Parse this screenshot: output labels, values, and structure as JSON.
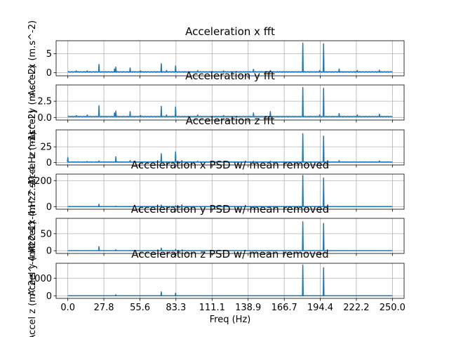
{
  "chart_data": [
    {
      "type": "line",
      "title": "Acceleration x fft",
      "ylabel": "Accel x (m.s^-2)",
      "xlabel": "",
      "xlim": [
        -9,
        259
      ],
      "ylim": [
        -0.8,
        8.4
      ],
      "yticks": [
        0,
        5
      ],
      "grid": true,
      "baseline": 0.25,
      "peaks": [
        [
          6.5,
          0.5
        ],
        [
          15,
          0.5
        ],
        [
          24,
          2.2
        ],
        [
          36,
          1.0
        ],
        [
          37,
          1.5
        ],
        [
          48,
          1.3
        ],
        [
          56,
          0.5
        ],
        [
          72,
          2.4
        ],
        [
          76,
          0.6
        ],
        [
          83,
          1.8
        ],
        [
          100,
          0.6
        ],
        [
          120,
          0.5
        ],
        [
          143,
          0.9
        ],
        [
          156,
          0.6
        ],
        [
          181,
          7.8
        ],
        [
          194,
          0.6
        ],
        [
          197,
          7.6
        ],
        [
          209,
          1.0
        ],
        [
          223,
          0.6
        ],
        [
          240,
          0.7
        ]
      ]
    },
    {
      "type": "line",
      "title": "Acceleration y fft",
      "ylabel": "Accel y (m.s^-2)",
      "xlabel": "",
      "xlim": [
        -9,
        259
      ],
      "ylim": [
        -0.4,
        5.0
      ],
      "yticks": [
        0.0,
        2.5
      ],
      "grid": true,
      "baseline": 0.15,
      "peaks": [
        [
          6.5,
          0.3
        ],
        [
          15,
          0.4
        ],
        [
          24,
          1.8
        ],
        [
          36,
          0.7
        ],
        [
          37,
          1.0
        ],
        [
          48,
          0.9
        ],
        [
          56,
          0.3
        ],
        [
          72,
          1.7
        ],
        [
          76,
          0.4
        ],
        [
          83,
          1.6
        ],
        [
          100,
          0.4
        ],
        [
          120,
          0.3
        ],
        [
          143,
          0.7
        ],
        [
          156,
          0.9
        ],
        [
          181,
          4.6
        ],
        [
          194,
          0.4
        ],
        [
          197,
          4.5
        ],
        [
          209,
          0.6
        ],
        [
          223,
          0.4
        ],
        [
          240,
          0.5
        ]
      ]
    },
    {
      "type": "line",
      "title": "Acceleration z fft",
      "ylabel": "Accel z (m.s^-2)",
      "xlabel": "",
      "xlim": [
        -9,
        259
      ],
      "ylim": [
        -4,
        52
      ],
      "yticks": [
        0,
        25
      ],
      "grid": true,
      "baseline": 0.8,
      "peaks": [
        [
          0,
          8
        ],
        [
          15,
          1.5
        ],
        [
          24,
          2.5
        ],
        [
          37,
          9
        ],
        [
          48,
          3
        ],
        [
          72,
          14
        ],
        [
          83,
          17
        ],
        [
          100,
          2
        ],
        [
          143,
          2
        ],
        [
          156,
          2
        ],
        [
          181,
          46
        ],
        [
          197,
          42
        ],
        [
          209,
          3
        ],
        [
          240,
          2.5
        ]
      ]
    },
    {
      "type": "line",
      "title": "Acceleration x PSD w/ mean removed",
      "ylabel": "Accel x (m^2.s^-4.Hz^-1)",
      "xlabel": "",
      "xlim": [
        -9,
        259
      ],
      "ylim": [
        -20,
        250
      ],
      "yticks": [
        0,
        200
      ],
      "grid": true,
      "baseline": 0.5,
      "peaks": [
        [
          24,
          18
        ],
        [
          37,
          4
        ],
        [
          72,
          12
        ],
        [
          83,
          6
        ],
        [
          181,
          240
        ],
        [
          197,
          220
        ]
      ]
    },
    {
      "type": "line",
      "title": "Acceleration y PSD w/ mean removed",
      "ylabel": "Accel y (m^2.s^-4.Hz^-1)",
      "xlabel": "",
      "xlim": [
        -9,
        259
      ],
      "ylim": [
        -8,
        95
      ],
      "yticks": [
        0,
        50
      ],
      "grid": true,
      "baseline": 0.3,
      "peaks": [
        [
          24,
          12
        ],
        [
          37,
          3
        ],
        [
          72,
          8
        ],
        [
          83,
          4
        ],
        [
          181,
          85
        ],
        [
          197,
          80
        ]
      ]
    },
    {
      "type": "line",
      "title": "Acceleration z PSD w/ mean removed",
      "ylabel": "Accel z (m^2.s^-4.Hz^-1)",
      "xlabel": "Freq (Hz)",
      "xlim": [
        -9,
        259
      ],
      "ylim": [
        -150,
        1850
      ],
      "yticks": [
        0,
        1000
      ],
      "grid": true,
      "baseline": 2,
      "peaks": [
        [
          37,
          60
        ],
        [
          72,
          220
        ],
        [
          83,
          150
        ],
        [
          181,
          1750
        ],
        [
          197,
          1600
        ]
      ]
    }
  ],
  "x_ticks": [
    "0.0",
    "27.8",
    "55.6",
    "83.3",
    "111.1",
    "138.9",
    "166.7",
    "194.4",
    "222.2",
    "250.0"
  ],
  "colors": {
    "line": "#1f77b4",
    "grid": "#b0b0b0",
    "axis": "#000000"
  }
}
